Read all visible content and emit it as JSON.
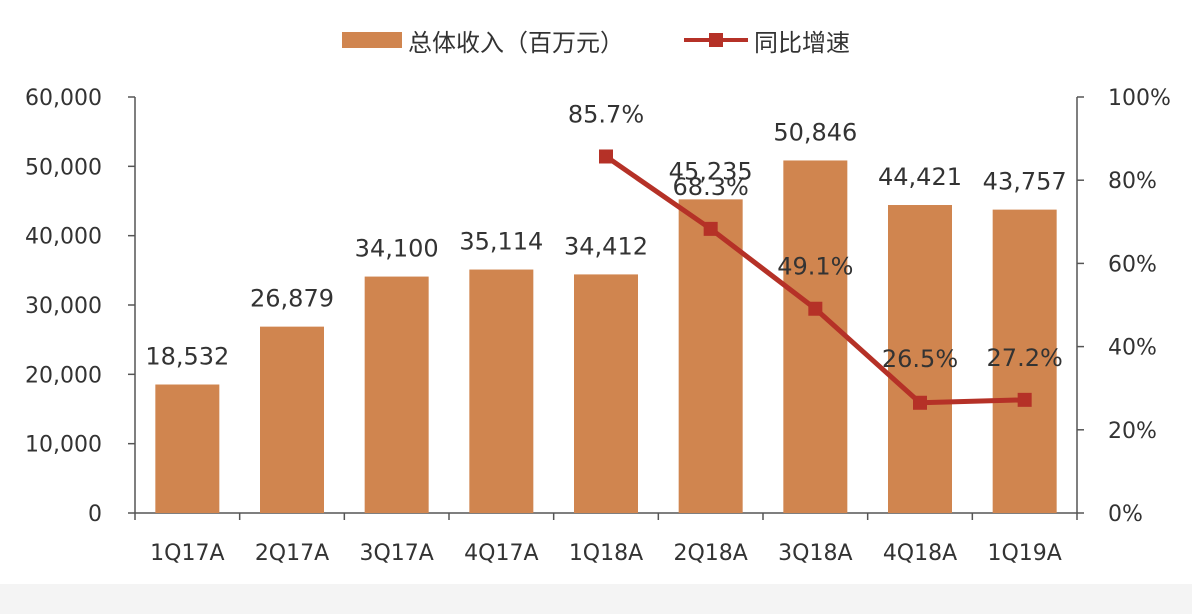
{
  "colors": {
    "bar": "#D0854F",
    "line": "#B53127",
    "text": "#333333",
    "axis": "#555555"
  },
  "legend": {
    "bar_label": "总体收入（百万元）",
    "line_label": "同比增速"
  },
  "chart_data": {
    "type": "bar",
    "categories": [
      "1Q17A",
      "2Q17A",
      "3Q17A",
      "4Q17A",
      "1Q18A",
      "2Q18A",
      "3Q18A",
      "4Q18A",
      "1Q19A"
    ],
    "series": [
      {
        "name": "总体收入（百万元）",
        "type": "bar",
        "axis": "left",
        "values": [
          18532,
          26879,
          34100,
          35114,
          34412,
          45235,
          50846,
          44421,
          43757
        ],
        "labels": [
          "18,532",
          "26,879",
          "34,100",
          "35,114",
          "34,412",
          "45,235",
          "50,846",
          "44,421",
          "43,757"
        ]
      },
      {
        "name": "同比增速",
        "type": "line",
        "axis": "right",
        "values": [
          null,
          null,
          null,
          null,
          85.7,
          68.3,
          49.1,
          26.5,
          27.2
        ],
        "labels": [
          "",
          "",
          "",
          "",
          "85.7%",
          "68.3%",
          "49.1%",
          "26.5%",
          "27.2%"
        ]
      }
    ],
    "y_left": {
      "ylim": [
        0,
        60000
      ],
      "ticks": [
        0,
        10000,
        20000,
        30000,
        40000,
        50000,
        60000
      ],
      "tick_labels": [
        "0",
        "10,000",
        "20,000",
        "30,000",
        "40,000",
        "50,000",
        "60,000"
      ]
    },
    "y_right": {
      "ylim": [
        0,
        100
      ],
      "ticks": [
        0,
        20,
        40,
        60,
        80,
        100
      ],
      "tick_labels": [
        "0%",
        "20%",
        "40%",
        "60%",
        "80%",
        "100%"
      ]
    },
    "grid": false,
    "legend_position": "top-center"
  }
}
